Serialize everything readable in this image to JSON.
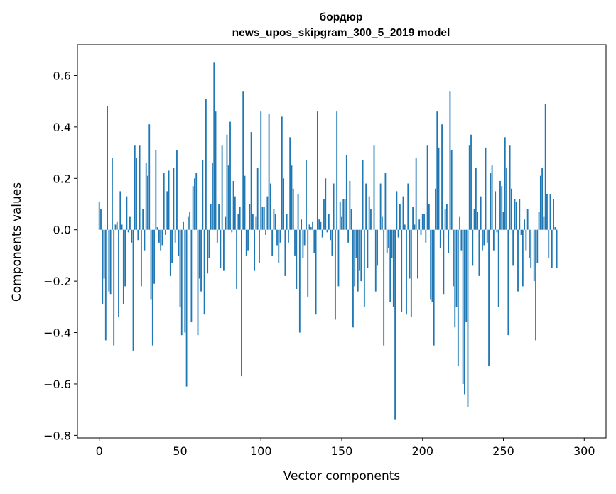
{
  "chart_data": {
    "type": "bar",
    "title": "бордюр",
    "subtitle": "news_upos_skipgram_300_5_2019 model",
    "xlabel": "Vector components",
    "ylabel": "Components values",
    "xlim": [
      -13.5,
      313.5
    ],
    "ylim": [
      -0.81,
      0.72
    ],
    "xticks": [
      0,
      50,
      100,
      150,
      200,
      250,
      300
    ],
    "yticks": [
      -0.8,
      -0.6,
      -0.4,
      -0.2,
      0.0,
      0.2,
      0.4,
      0.6
    ],
    "ytick_labels": [
      "−0.8",
      "−0.6",
      "−0.4",
      "−0.2",
      "0.0",
      "0.2",
      "0.4",
      "0.6"
    ],
    "bar_color": "#1f77b4",
    "grid": false,
    "values": [
      0.11,
      0.08,
      -0.29,
      -0.19,
      -0.43,
      0.48,
      -0.24,
      -0.25,
      0.28,
      -0.45,
      0.02,
      0.03,
      -0.34,
      0.15,
      0.02,
      -0.29,
      -0.22,
      0.13,
      -0.01,
      0.05,
      -0.05,
      -0.47,
      0.33,
      0.28,
      -0.04,
      0.33,
      -0.22,
      0.08,
      -0.08,
      0.26,
      0.21,
      0.41,
      -0.27,
      -0.45,
      -0.21,
      0.31,
      0.01,
      -0.05,
      -0.08,
      -0.06,
      0.22,
      -0.02,
      0.15,
      0.23,
      -0.18,
      -0.13,
      0.24,
      -0.05,
      0.31,
      -0.1,
      -0.3,
      -0.41,
      0.03,
      -0.4,
      -0.61,
      0.05,
      0.07,
      -0.36,
      0.17,
      0.2,
      0.22,
      -0.41,
      -0.19,
      -0.24,
      0.27,
      -0.33,
      0.51,
      -0.17,
      -0.11,
      0.1,
      0.26,
      0.65,
      0.46,
      -0.05,
      0.1,
      -0.15,
      0.33,
      -0.16,
      0.05,
      0.37,
      0.25,
      0.42,
      -0.01,
      0.19,
      0.13,
      -0.23,
      0.06,
      0.09,
      -0.57,
      0.54,
      0.21,
      -0.1,
      -0.08,
      0.1,
      0.38,
      0.06,
      -0.16,
      0.05,
      0.24,
      -0.13,
      0.46,
      0.09,
      0.09,
      -0.02,
      0.13,
      0.45,
      0.18,
      -0.1,
      0.08,
      0.06,
      -0.06,
      -0.13,
      -0.05,
      0.44,
      0.2,
      -0.18,
      0.06,
      -0.05,
      0.36,
      0.25,
      0.16,
      -0.1,
      -0.23,
      0.14,
      -0.4,
      0.04,
      -0.11,
      -0.06,
      0.27,
      -0.26,
      0.02,
      0.01,
      0.03,
      -0.09,
      -0.33,
      0.46,
      0.04,
      0.03,
      -0.03,
      0.12,
      0.2,
      -0.01,
      0.06,
      -0.04,
      -0.1,
      0.18,
      -0.35,
      0.46,
      -0.22,
      0.11,
      0.05,
      0.12,
      0.12,
      0.29,
      -0.05,
      0.19,
      0.08,
      -0.38,
      -0.22,
      -0.11,
      -0.24,
      -0.16,
      -0.2,
      0.27,
      -0.3,
      0.18,
      -0.15,
      0.13,
      0.08,
      0.0,
      0.33,
      -0.24,
      -0.14,
      0.0,
      0.18,
      0.05,
      -0.45,
      0.22,
      -0.09,
      -0.07,
      -0.28,
      -0.11,
      -0.3,
      -0.74,
      0.15,
      -0.03,
      0.1,
      -0.32,
      0.13,
      0.02,
      -0.33,
      0.18,
      -0.19,
      -0.34,
      0.09,
      0.02,
      0.28,
      -0.19,
      0.04,
      -0.02,
      0.06,
      0.06,
      -0.05,
      0.33,
      0.1,
      -0.27,
      -0.28,
      -0.45,
      0.16,
      0.46,
      0.32,
      -0.07,
      0.41,
      -0.25,
      0.08,
      0.1,
      -0.09,
      0.54,
      0.31,
      -0.22,
      -0.38,
      -0.3,
      -0.53,
      0.05,
      -0.08,
      -0.6,
      -0.64,
      -0.36,
      -0.69,
      0.33,
      0.37,
      -0.14,
      0.08,
      0.24,
      0.07,
      -0.18,
      0.13,
      -0.08,
      -0.06,
      0.32,
      -0.05,
      -0.53,
      0.22,
      0.25,
      -0.08,
      0.15,
      -0.01,
      -0.3,
      0.19,
      0.17,
      0.07,
      0.36,
      0.24,
      -0.41,
      0.33,
      0.16,
      -0.14,
      0.12,
      0.11,
      -0.24,
      0.12,
      -0.02,
      -0.22,
      0.04,
      -0.08,
      0.08,
      -0.11,
      -0.15,
      0.0,
      -0.2,
      -0.43,
      -0.13,
      0.07,
      0.21,
      0.24,
      0.05,
      0.49,
      0.14,
      -0.11,
      0.14,
      -0.15,
      0.12,
      0.01,
      -0.15,
      0.0
    ]
  }
}
